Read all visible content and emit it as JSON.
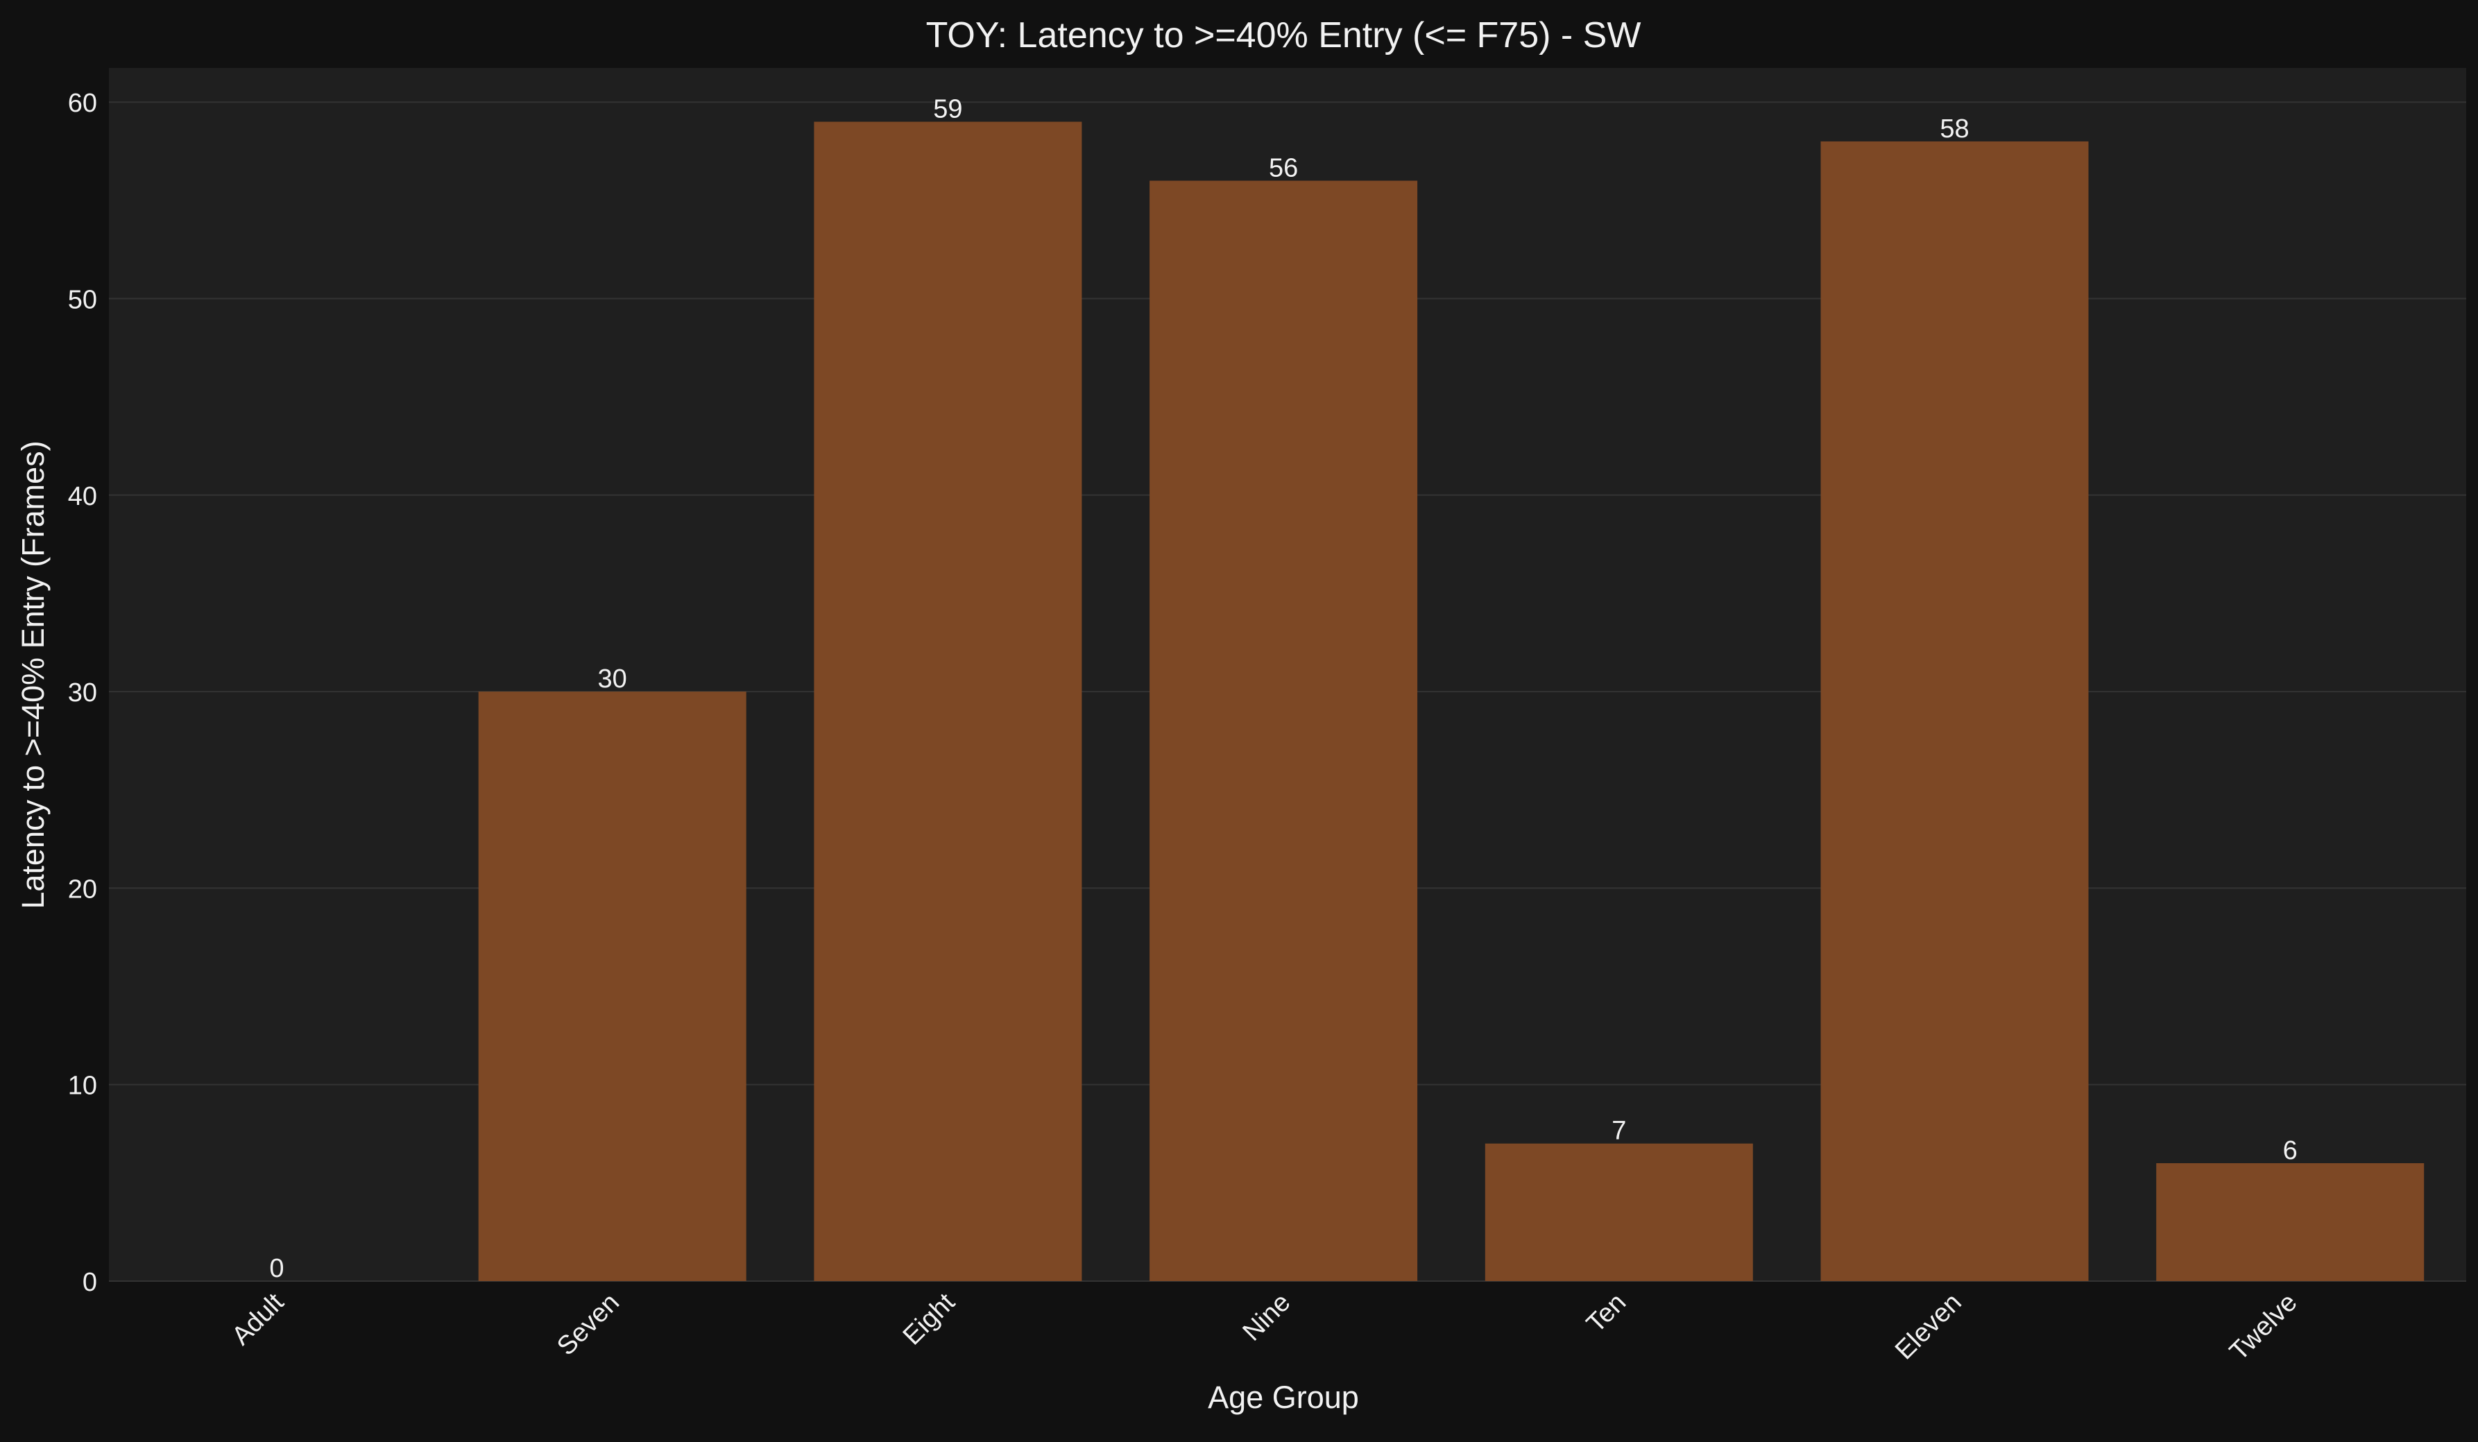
{
  "colors": {
    "figure_background": "#111111",
    "plot_background": "#1f1f1f",
    "bar": "#7d4825",
    "grid": "#333333",
    "text": "#f2f2f2"
  },
  "chart_data": {
    "type": "bar",
    "title": "TOY: Latency to >=40% Entry (<= F75) - SW",
    "xlabel": "Age Group",
    "ylabel": "Latency to >=40% Entry (Frames)",
    "categories": [
      "Adult",
      "Seven",
      "Eight",
      "Nine",
      "Ten",
      "Eleven",
      "Twelve"
    ],
    "values": [
      0,
      30,
      59,
      56,
      7,
      58,
      6
    ],
    "data_labels": [
      "0",
      "30",
      "59",
      "56",
      "7",
      "58",
      "6"
    ],
    "ylim": [
      0,
      62
    ],
    "yticks": [
      0,
      10,
      20,
      30,
      40,
      50,
      60
    ],
    "grid": true,
    "x_tick_rotation_deg": 45
  }
}
